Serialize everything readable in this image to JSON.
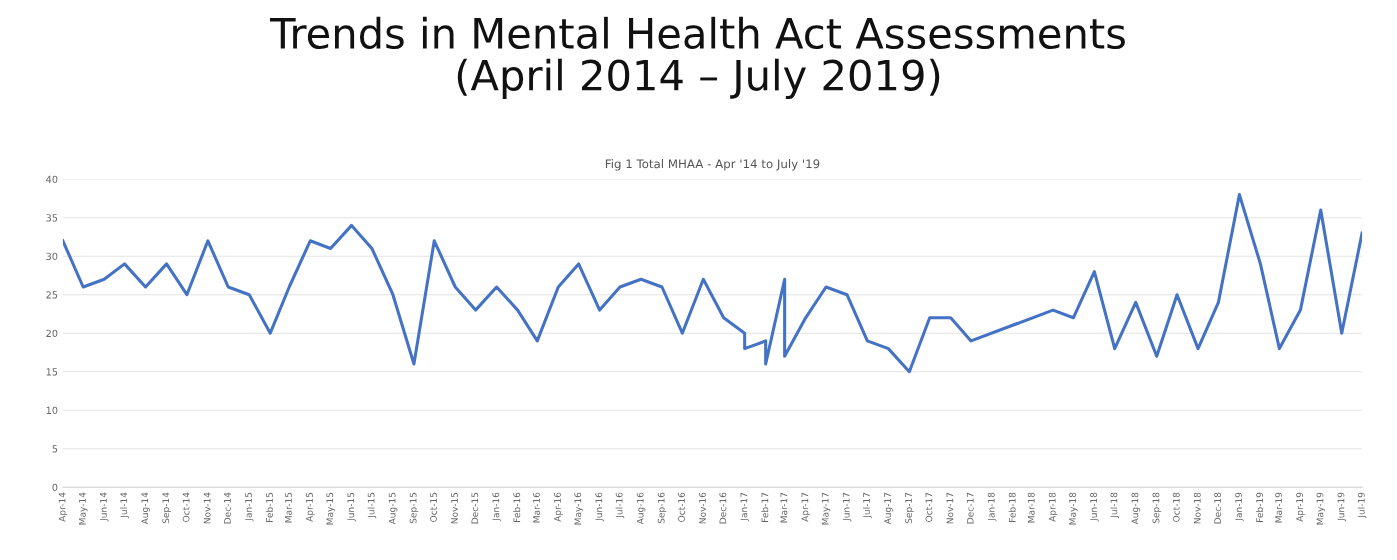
{
  "chart_data": {
    "type": "line",
    "title": "Trends in Mental Health Act Assessments\n(April 2014 – July 2019)",
    "subtitle": "Fig 1 Total MHAA - Apr '14 to July '19",
    "x": [
      "2014-04",
      "2014-05",
      "2014-06",
      "2014-07",
      "2014-08",
      "2014-09",
      "2014-10",
      "2014-11",
      "2014-12",
      "2015-01",
      "2015-02",
      "2015-03",
      "2015-04",
      "2015-05",
      "2015-06",
      "2015-07",
      "2015-08",
      "2015-09",
      "2015-10",
      "2015-11",
      "2015-12",
      "2016-01",
      "2016-02",
      "2016-03",
      "2016-04",
      "2016-05",
      "2016-06",
      "2016-07",
      "2016-08",
      "2016-09",
      "2016-10",
      "2016-11",
      "2016-12",
      "2017-01",
      "2017-01",
      "2017-02",
      "2017-02",
      "2017-03",
      "2017-03",
      "2017-04",
      "2017-05",
      "2017-06",
      "2017-07",
      "2017-08",
      "2017-09",
      "2017-10",
      "2017-11",
      "2017-12",
      "2018-04",
      "2018-05",
      "2018-06",
      "2018-07",
      "2018-08",
      "2018-09",
      "2018-10",
      "2018-11",
      "2018-12",
      "2019-01",
      "2019-02",
      "2019-03",
      "2019-04",
      "2019-05",
      "2019-06",
      "2019-07"
    ],
    "series": [
      {
        "color": "#4472c4",
        "values": [
          32,
          26,
          27,
          29,
          26,
          29,
          25,
          32,
          26,
          25,
          20,
          26,
          32,
          31,
          34,
          31,
          25,
          16,
          32,
          26,
          23,
          26,
          23,
          19,
          26,
          29,
          23,
          26,
          27,
          26,
          20,
          27,
          22,
          20,
          18,
          19,
          16,
          27,
          17,
          22,
          26,
          25,
          19,
          18,
          15,
          22,
          22,
          19,
          23,
          22,
          28,
          18,
          24,
          17,
          25,
          18,
          24,
          38,
          29,
          18,
          23,
          36,
          20,
          33
        ]
      }
    ],
    "xlim": [
      "2014-04",
      "2019-07"
    ],
    "xticks": [
      {
        "value": "2014-04",
        "label": "Apr-14"
      },
      {
        "value": "2014-05",
        "label": "May-14"
      },
      {
        "value": "2014-06",
        "label": "Jun-14"
      },
      {
        "value": "2014-07",
        "label": "Jul-14"
      },
      {
        "value": "2014-08",
        "label": "Aug-14"
      },
      {
        "value": "2014-09",
        "label": "Sep-14"
      },
      {
        "value": "2014-10",
        "label": "Oct-14"
      },
      {
        "value": "2014-11",
        "label": "Nov-14"
      },
      {
        "value": "2014-12",
        "label": "Dec-14"
      },
      {
        "value": "2015-01",
        "label": "Jan-15"
      },
      {
        "value": "2015-02",
        "label": "Feb-15"
      },
      {
        "value": "2015-03",
        "label": "Mar-15"
      },
      {
        "value": "2015-04",
        "label": "Apr-15"
      },
      {
        "value": "2015-05",
        "label": "May-15"
      },
      {
        "value": "2015-06",
        "label": "Jun-15"
      },
      {
        "value": "2015-07",
        "label": "Jul-15"
      },
      {
        "value": "2015-08",
        "label": "Aug-15"
      },
      {
        "value": "2015-09",
        "label": "Sep-15"
      },
      {
        "value": "2015-10",
        "label": "Oct-15"
      },
      {
        "value": "2015-11",
        "label": "Nov-15"
      },
      {
        "value": "2015-12",
        "label": "Dec-15"
      },
      {
        "value": "2016-01",
        "label": "Jan-16"
      },
      {
        "value": "2016-02",
        "label": "Feb-16"
      },
      {
        "value": "2016-03",
        "label": "Mar-16"
      },
      {
        "value": "2016-04",
        "label": "Apr-16"
      },
      {
        "value": "2016-05",
        "label": "May-16"
      },
      {
        "value": "2016-06",
        "label": "Jun-16"
      },
      {
        "value": "2016-07",
        "label": "Jul-16"
      },
      {
        "value": "2016-08",
        "label": "Aug-16"
      },
      {
        "value": "2016-09",
        "label": "Sep-16"
      },
      {
        "value": "2016-10",
        "label": "Oct-16"
      },
      {
        "value": "2016-11",
        "label": "Nov-16"
      },
      {
        "value": "2016-12",
        "label": "Dec-16"
      },
      {
        "value": "2017-01",
        "label": "Jan-17"
      },
      {
        "value": "2017-02",
        "label": "Feb-17"
      },
      {
        "value": "2017-03",
        "label": "Mar-17"
      },
      {
        "value": "2017-04",
        "label": "Apr-17"
      },
      {
        "value": "2017-05",
        "label": "May-17"
      },
      {
        "value": "2017-06",
        "label": "Jun-17"
      },
      {
        "value": "2017-07",
        "label": "Jul-17"
      },
      {
        "value": "2017-08",
        "label": "Aug-17"
      },
      {
        "value": "2017-09",
        "label": "Sep-17"
      },
      {
        "value": "2017-10",
        "label": "Oct-17"
      },
      {
        "value": "2017-11",
        "label": "Nov-17"
      },
      {
        "value": "2017-12",
        "label": "Dec-17"
      },
      {
        "value": "2018-01",
        "label": "Jan-18"
      },
      {
        "value": "2018-02",
        "label": "Feb-18"
      },
      {
        "value": "2018-03",
        "label": "Mar-18"
      },
      {
        "value": "2018-04",
        "label": "Apr-18"
      },
      {
        "value": "2018-05",
        "label": "May-18"
      },
      {
        "value": "2018-06",
        "label": "Jun-18"
      },
      {
        "value": "2018-07",
        "label": "Jul-18"
      },
      {
        "value": "2018-08",
        "label": "Aug-18"
      },
      {
        "value": "2018-09",
        "label": "Sep-18"
      },
      {
        "value": "2018-10",
        "label": "Oct-18"
      },
      {
        "value": "2018-11",
        "label": "Nov-18"
      },
      {
        "value": "2018-12",
        "label": "Dec-18"
      },
      {
        "value": "2019-01",
        "label": "Jan-19"
      },
      {
        "value": "2019-02",
        "label": "Feb-19"
      },
      {
        "value": "2019-03",
        "label": "Mar-19"
      },
      {
        "value": "2019-04",
        "label": "Apr-19"
      },
      {
        "value": "2019-05",
        "label": "May-19"
      },
      {
        "value": "2019-06",
        "label": "Jun-19"
      },
      {
        "value": "2019-07",
        "label": "Jul-19"
      }
    ],
    "ylim": [
      0,
      40
    ],
    "yticks": [
      0,
      5,
      10,
      15,
      20,
      25,
      30,
      35,
      40
    ],
    "grid": "y",
    "marker": "none",
    "line_style": "solid"
  }
}
